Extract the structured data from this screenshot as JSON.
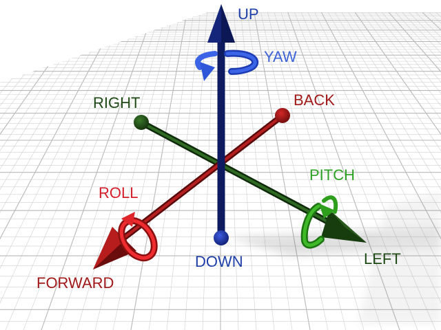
{
  "colors": {
    "up_down_axis": "#1a2f9c",
    "up_arrowhead": "#16287e",
    "forward_back_axis": "#a31515",
    "right_left_axis": "#1e4a14",
    "yaw_ring": "#2e56d9",
    "pitch_ring": "#2e9e1c",
    "roll_ring": "#e0262a",
    "grid_line": "#cfcfcf",
    "grid_line_major": "#b7b7b7",
    "label_up": "#1f3fa8",
    "label_yaw": "#3d63d6",
    "label_down": "#1f3fa8",
    "label_back": "#a01818",
    "label_forward": "#a01818",
    "label_roll": "#d41f2a",
    "label_right": "#1f4a16",
    "label_left": "#1f4a16",
    "label_pitch": "#2ea025"
  },
  "labels": {
    "up": "UP",
    "down": "DOWN",
    "yaw": "YAW",
    "back": "BACK",
    "forward": "FORWARD",
    "roll": "ROLL",
    "right": "RIGHT",
    "left": "LEFT",
    "pitch": "PITCH"
  },
  "icons": {
    "up_arrow": "arrow-up-icon",
    "forward_arrow": "arrow-forward-icon",
    "left_arrow": "arrow-left-icon",
    "yaw_ring": "rotate-yaw-icon",
    "roll_ring": "rotate-roll-icon",
    "pitch_ring": "rotate-pitch-icon"
  }
}
